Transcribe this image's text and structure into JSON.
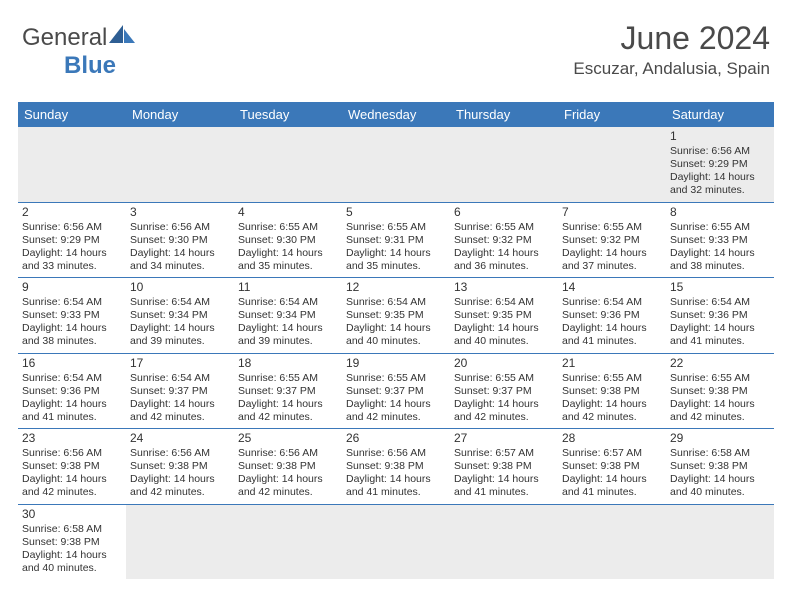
{
  "brand": {
    "part1": "General",
    "part2": "Blue"
  },
  "title": "June 2024",
  "location": "Escuzar, Andalusia, Spain",
  "colors": {
    "header_bg": "#3b78b9",
    "header_text": "#ffffff",
    "body_text": "#333333",
    "title_text": "#4a4a4a",
    "rule": "#3b78b9",
    "empty_bg": "#ececec"
  },
  "weekdays": [
    "Sunday",
    "Monday",
    "Tuesday",
    "Wednesday",
    "Thursday",
    "Friday",
    "Saturday"
  ],
  "weeks": [
    [
      null,
      null,
      null,
      null,
      null,
      null,
      {
        "n": "1",
        "sr": "Sunrise: 6:56 AM",
        "ss": "Sunset: 9:29 PM",
        "d1": "Daylight: 14 hours",
        "d2": "and 32 minutes."
      }
    ],
    [
      {
        "n": "2",
        "sr": "Sunrise: 6:56 AM",
        "ss": "Sunset: 9:29 PM",
        "d1": "Daylight: 14 hours",
        "d2": "and 33 minutes."
      },
      {
        "n": "3",
        "sr": "Sunrise: 6:56 AM",
        "ss": "Sunset: 9:30 PM",
        "d1": "Daylight: 14 hours",
        "d2": "and 34 minutes."
      },
      {
        "n": "4",
        "sr": "Sunrise: 6:55 AM",
        "ss": "Sunset: 9:30 PM",
        "d1": "Daylight: 14 hours",
        "d2": "and 35 minutes."
      },
      {
        "n": "5",
        "sr": "Sunrise: 6:55 AM",
        "ss": "Sunset: 9:31 PM",
        "d1": "Daylight: 14 hours",
        "d2": "and 35 minutes."
      },
      {
        "n": "6",
        "sr": "Sunrise: 6:55 AM",
        "ss": "Sunset: 9:32 PM",
        "d1": "Daylight: 14 hours",
        "d2": "and 36 minutes."
      },
      {
        "n": "7",
        "sr": "Sunrise: 6:55 AM",
        "ss": "Sunset: 9:32 PM",
        "d1": "Daylight: 14 hours",
        "d2": "and 37 minutes."
      },
      {
        "n": "8",
        "sr": "Sunrise: 6:55 AM",
        "ss": "Sunset: 9:33 PM",
        "d1": "Daylight: 14 hours",
        "d2": "and 38 minutes."
      }
    ],
    [
      {
        "n": "9",
        "sr": "Sunrise: 6:54 AM",
        "ss": "Sunset: 9:33 PM",
        "d1": "Daylight: 14 hours",
        "d2": "and 38 minutes."
      },
      {
        "n": "10",
        "sr": "Sunrise: 6:54 AM",
        "ss": "Sunset: 9:34 PM",
        "d1": "Daylight: 14 hours",
        "d2": "and 39 minutes."
      },
      {
        "n": "11",
        "sr": "Sunrise: 6:54 AM",
        "ss": "Sunset: 9:34 PM",
        "d1": "Daylight: 14 hours",
        "d2": "and 39 minutes."
      },
      {
        "n": "12",
        "sr": "Sunrise: 6:54 AM",
        "ss": "Sunset: 9:35 PM",
        "d1": "Daylight: 14 hours",
        "d2": "and 40 minutes."
      },
      {
        "n": "13",
        "sr": "Sunrise: 6:54 AM",
        "ss": "Sunset: 9:35 PM",
        "d1": "Daylight: 14 hours",
        "d2": "and 40 minutes."
      },
      {
        "n": "14",
        "sr": "Sunrise: 6:54 AM",
        "ss": "Sunset: 9:36 PM",
        "d1": "Daylight: 14 hours",
        "d2": "and 41 minutes."
      },
      {
        "n": "15",
        "sr": "Sunrise: 6:54 AM",
        "ss": "Sunset: 9:36 PM",
        "d1": "Daylight: 14 hours",
        "d2": "and 41 minutes."
      }
    ],
    [
      {
        "n": "16",
        "sr": "Sunrise: 6:54 AM",
        "ss": "Sunset: 9:36 PM",
        "d1": "Daylight: 14 hours",
        "d2": "and 41 minutes."
      },
      {
        "n": "17",
        "sr": "Sunrise: 6:54 AM",
        "ss": "Sunset: 9:37 PM",
        "d1": "Daylight: 14 hours",
        "d2": "and 42 minutes."
      },
      {
        "n": "18",
        "sr": "Sunrise: 6:55 AM",
        "ss": "Sunset: 9:37 PM",
        "d1": "Daylight: 14 hours",
        "d2": "and 42 minutes."
      },
      {
        "n": "19",
        "sr": "Sunrise: 6:55 AM",
        "ss": "Sunset: 9:37 PM",
        "d1": "Daylight: 14 hours",
        "d2": "and 42 minutes."
      },
      {
        "n": "20",
        "sr": "Sunrise: 6:55 AM",
        "ss": "Sunset: 9:37 PM",
        "d1": "Daylight: 14 hours",
        "d2": "and 42 minutes."
      },
      {
        "n": "21",
        "sr": "Sunrise: 6:55 AM",
        "ss": "Sunset: 9:38 PM",
        "d1": "Daylight: 14 hours",
        "d2": "and 42 minutes."
      },
      {
        "n": "22",
        "sr": "Sunrise: 6:55 AM",
        "ss": "Sunset: 9:38 PM",
        "d1": "Daylight: 14 hours",
        "d2": "and 42 minutes."
      }
    ],
    [
      {
        "n": "23",
        "sr": "Sunrise: 6:56 AM",
        "ss": "Sunset: 9:38 PM",
        "d1": "Daylight: 14 hours",
        "d2": "and 42 minutes."
      },
      {
        "n": "24",
        "sr": "Sunrise: 6:56 AM",
        "ss": "Sunset: 9:38 PM",
        "d1": "Daylight: 14 hours",
        "d2": "and 42 minutes."
      },
      {
        "n": "25",
        "sr": "Sunrise: 6:56 AM",
        "ss": "Sunset: 9:38 PM",
        "d1": "Daylight: 14 hours",
        "d2": "and 42 minutes."
      },
      {
        "n": "26",
        "sr": "Sunrise: 6:56 AM",
        "ss": "Sunset: 9:38 PM",
        "d1": "Daylight: 14 hours",
        "d2": "and 41 minutes."
      },
      {
        "n": "27",
        "sr": "Sunrise: 6:57 AM",
        "ss": "Sunset: 9:38 PM",
        "d1": "Daylight: 14 hours",
        "d2": "and 41 minutes."
      },
      {
        "n": "28",
        "sr": "Sunrise: 6:57 AM",
        "ss": "Sunset: 9:38 PM",
        "d1": "Daylight: 14 hours",
        "d2": "and 41 minutes."
      },
      {
        "n": "29",
        "sr": "Sunrise: 6:58 AM",
        "ss": "Sunset: 9:38 PM",
        "d1": "Daylight: 14 hours",
        "d2": "and 40 minutes."
      }
    ],
    [
      {
        "n": "30",
        "sr": "Sunrise: 6:58 AM",
        "ss": "Sunset: 9:38 PM",
        "d1": "Daylight: 14 hours",
        "d2": "and 40 minutes."
      },
      null,
      null,
      null,
      null,
      null,
      null
    ]
  ]
}
